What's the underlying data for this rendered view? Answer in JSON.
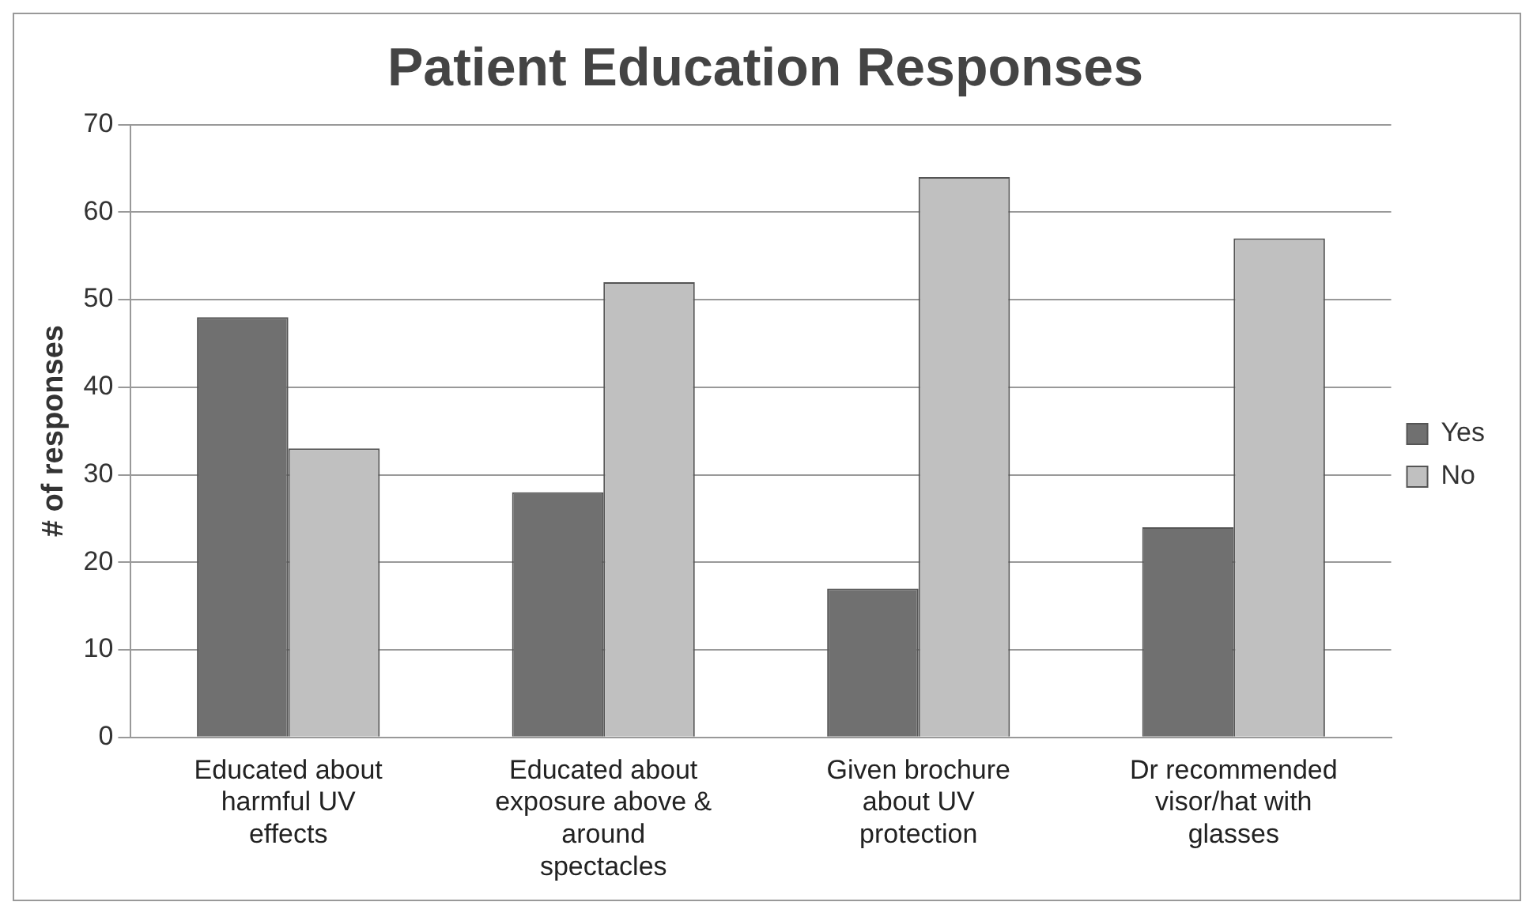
{
  "chart_data": {
    "type": "bar",
    "title": "Patient Education Responses",
    "ylabel": "# of responses",
    "categories": [
      "Educated about harmful UV effects",
      "Educated about exposure above & around spectacles",
      "Given brochure about UV protection",
      "Dr recommended visor/hat with glasses"
    ],
    "series": [
      {
        "name": "Yes",
        "color": "#707070",
        "values": [
          48,
          28,
          17,
          24
        ]
      },
      {
        "name": "No",
        "color": "#c0c0c0",
        "values": [
          33,
          52,
          64,
          57
        ]
      }
    ],
    "ylim": [
      0,
      70
    ],
    "yticks": [
      0,
      10,
      20,
      30,
      40,
      50,
      60,
      70
    ],
    "grid": "y",
    "legend": "right"
  }
}
